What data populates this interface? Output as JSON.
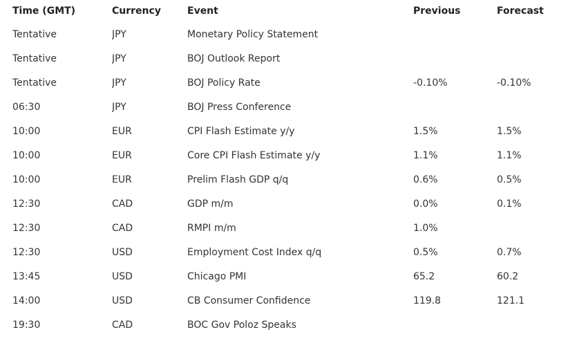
{
  "table": {
    "headers": {
      "time": "Time (GMT)",
      "currency": "Currency",
      "event": "Event",
      "previous": "Previous",
      "forecast": "Forecast"
    },
    "rows": [
      {
        "time": "Tentative",
        "currency": "JPY",
        "event": "Monetary Policy Statement",
        "previous": "",
        "forecast": ""
      },
      {
        "time": "Tentative",
        "currency": "JPY",
        "event": "BOJ Outlook Report",
        "previous": "",
        "forecast": ""
      },
      {
        "time": "Tentative",
        "currency": "JPY",
        "event": "BOJ Policy Rate",
        "previous": "-0.10%",
        "forecast": "-0.10%"
      },
      {
        "time": "06:30",
        "currency": "JPY",
        "event": "BOJ Press Conference",
        "previous": "",
        "forecast": ""
      },
      {
        "time": "10:00",
        "currency": "EUR",
        "event": "CPI Flash Estimate y/y",
        "previous": "1.5%",
        "forecast": "1.5%"
      },
      {
        "time": "10:00",
        "currency": "EUR",
        "event": "Core CPI Flash Estimate y/y",
        "previous": "1.1%",
        "forecast": "1.1%"
      },
      {
        "time": "10:00",
        "currency": "EUR",
        "event": "Prelim Flash GDP q/q",
        "previous": "0.6%",
        "forecast": "0.5%"
      },
      {
        "time": "12:30",
        "currency": "CAD",
        "event": "GDP m/m",
        "previous": "0.0%",
        "forecast": "0.1%"
      },
      {
        "time": "12:30",
        "currency": "CAD",
        "event": "RMPI m/m",
        "previous": "1.0%",
        "forecast": ""
      },
      {
        "time": "12:30",
        "currency": "USD",
        "event": "Employment Cost Index q/q",
        "previous": "0.5%",
        "forecast": "0.7%"
      },
      {
        "time": "13:45",
        "currency": "USD",
        "event": "Chicago PMI",
        "previous": "65.2",
        "forecast": "60.2"
      },
      {
        "time": "14:00",
        "currency": "USD",
        "event": "CB Consumer Confidence",
        "previous": "119.8",
        "forecast": "121.1"
      },
      {
        "time": "19:30",
        "currency": "CAD",
        "event": "BOC Gov Poloz Speaks",
        "previous": "",
        "forecast": ""
      }
    ]
  }
}
